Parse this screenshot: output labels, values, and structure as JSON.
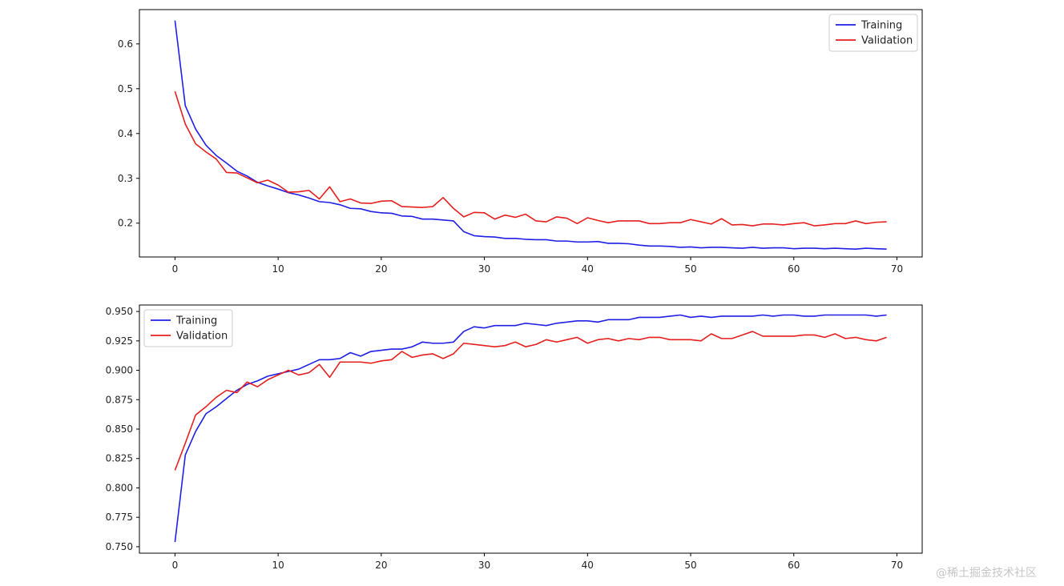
{
  "chart_data": [
    {
      "type": "line",
      "title": "",
      "xlabel": "",
      "ylabel": "",
      "xlim": [
        -3.45,
        72.45
      ],
      "ylim": [
        0.1245,
        0.6765
      ],
      "xticks": [
        0,
        10,
        20,
        30,
        40,
        50,
        60,
        70
      ],
      "xtick_labels": [
        "0",
        "10",
        "20",
        "30",
        "40",
        "50",
        "60",
        "70"
      ],
      "yticks": [
        0.2,
        0.3,
        0.4,
        0.5,
        0.6
      ],
      "ytick_labels": [
        "0.2",
        "0.3",
        "0.4",
        "0.5",
        "0.6"
      ],
      "grid": false,
      "legend_position": "top-right",
      "series": [
        {
          "name": "Training",
          "color": "#1f1fe6",
          "x": [
            0,
            1,
            2,
            3,
            4,
            5,
            6,
            7,
            8,
            9,
            10,
            11,
            12,
            13,
            14,
            15,
            16,
            17,
            18,
            19,
            20,
            21,
            22,
            23,
            24,
            25,
            26,
            27,
            28,
            29,
            30,
            31,
            32,
            33,
            34,
            35,
            36,
            37,
            38,
            39,
            40,
            41,
            42,
            43,
            44,
            45,
            46,
            47,
            48,
            49,
            50,
            51,
            52,
            53,
            54,
            55,
            56,
            57,
            58,
            59,
            60,
            61,
            62,
            63,
            64,
            65,
            66,
            67,
            68,
            69
          ],
          "values": [
            0.652,
            0.462,
            0.41,
            0.374,
            0.351,
            0.334,
            0.316,
            0.305,
            0.291,
            0.283,
            0.276,
            0.268,
            0.263,
            0.256,
            0.248,
            0.246,
            0.241,
            0.233,
            0.232,
            0.226,
            0.223,
            0.222,
            0.216,
            0.215,
            0.209,
            0.209,
            0.207,
            0.205,
            0.181,
            0.172,
            0.17,
            0.169,
            0.166,
            0.166,
            0.164,
            0.163,
            0.163,
            0.16,
            0.16,
            0.158,
            0.158,
            0.159,
            0.155,
            0.155,
            0.154,
            0.151,
            0.149,
            0.149,
            0.148,
            0.146,
            0.147,
            0.145,
            0.146,
            0.146,
            0.145,
            0.144,
            0.146,
            0.144,
            0.145,
            0.145,
            0.143,
            0.144,
            0.144,
            0.143,
            0.144,
            0.143,
            0.142,
            0.144,
            0.143,
            0.142
          ]
        },
        {
          "name": "Validation",
          "color": "#e61f1f",
          "x": [
            0,
            1,
            2,
            3,
            4,
            5,
            6,
            7,
            8,
            9,
            10,
            11,
            12,
            13,
            14,
            15,
            16,
            17,
            18,
            19,
            20,
            21,
            22,
            23,
            24,
            25,
            26,
            27,
            28,
            29,
            30,
            31,
            32,
            33,
            34,
            35,
            36,
            37,
            38,
            39,
            40,
            41,
            42,
            43,
            44,
            45,
            46,
            47,
            48,
            49,
            50,
            51,
            52,
            53,
            54,
            55,
            56,
            57,
            58,
            59,
            60,
            61,
            62,
            63,
            64,
            65,
            66,
            67,
            68,
            69
          ],
          "values": [
            0.494,
            0.421,
            0.377,
            0.359,
            0.343,
            0.313,
            0.312,
            0.301,
            0.29,
            0.296,
            0.285,
            0.269,
            0.27,
            0.273,
            0.254,
            0.281,
            0.248,
            0.254,
            0.245,
            0.244,
            0.249,
            0.25,
            0.237,
            0.236,
            0.235,
            0.237,
            0.257,
            0.233,
            0.214,
            0.224,
            0.223,
            0.209,
            0.218,
            0.213,
            0.22,
            0.205,
            0.203,
            0.214,
            0.211,
            0.199,
            0.212,
            0.206,
            0.201,
            0.205,
            0.205,
            0.205,
            0.199,
            0.199,
            0.201,
            0.201,
            0.208,
            0.203,
            0.198,
            0.21,
            0.196,
            0.197,
            0.194,
            0.198,
            0.198,
            0.196,
            0.199,
            0.201,
            0.194,
            0.196,
            0.199,
            0.199,
            0.205,
            0.199,
            0.202,
            0.203
          ]
        }
      ]
    },
    {
      "type": "line",
      "title": "",
      "xlabel": "",
      "ylabel": "",
      "xlim": [
        -3.45,
        72.45
      ],
      "ylim": [
        0.7445,
        0.9555
      ],
      "xticks": [
        0,
        10,
        20,
        30,
        40,
        50,
        60,
        70
      ],
      "xtick_labels": [
        "0",
        "10",
        "20",
        "30",
        "40",
        "50",
        "60",
        "70"
      ],
      "yticks": [
        0.75,
        0.775,
        0.8,
        0.825,
        0.85,
        0.875,
        0.9,
        0.925,
        0.95
      ],
      "ytick_labels": [
        "0.750",
        "0.775",
        "0.800",
        "0.825",
        "0.850",
        "0.875",
        "0.900",
        "0.925",
        "0.950"
      ],
      "grid": false,
      "legend_position": "top-left",
      "series": [
        {
          "name": "Training",
          "color": "#1f1fe6",
          "x": [
            0,
            1,
            2,
            3,
            4,
            5,
            6,
            7,
            8,
            9,
            10,
            11,
            12,
            13,
            14,
            15,
            16,
            17,
            18,
            19,
            20,
            21,
            22,
            23,
            24,
            25,
            26,
            27,
            28,
            29,
            30,
            31,
            32,
            33,
            34,
            35,
            36,
            37,
            38,
            39,
            40,
            41,
            42,
            43,
            44,
            45,
            46,
            47,
            48,
            49,
            50,
            51,
            52,
            53,
            54,
            55,
            56,
            57,
            58,
            59,
            60,
            61,
            62,
            63,
            64,
            65,
            66,
            67,
            68,
            69
          ],
          "values": [
            0.754,
            0.828,
            0.848,
            0.863,
            0.869,
            0.876,
            0.883,
            0.888,
            0.891,
            0.895,
            0.897,
            0.899,
            0.901,
            0.905,
            0.909,
            0.909,
            0.91,
            0.915,
            0.912,
            0.916,
            0.917,
            0.918,
            0.918,
            0.92,
            0.924,
            0.923,
            0.923,
            0.924,
            0.933,
            0.937,
            0.936,
            0.938,
            0.938,
            0.938,
            0.94,
            0.939,
            0.938,
            0.94,
            0.941,
            0.942,
            0.942,
            0.941,
            0.943,
            0.943,
            0.943,
            0.945,
            0.945,
            0.945,
            0.946,
            0.947,
            0.945,
            0.946,
            0.945,
            0.946,
            0.946,
            0.946,
            0.946,
            0.947,
            0.946,
            0.947,
            0.947,
            0.946,
            0.946,
            0.947,
            0.947,
            0.947,
            0.947,
            0.947,
            0.946,
            0.947
          ]
        },
        {
          "name": "Validation",
          "color": "#e61f1f",
          "x": [
            0,
            1,
            2,
            3,
            4,
            5,
            6,
            7,
            8,
            9,
            10,
            11,
            12,
            13,
            14,
            15,
            16,
            17,
            18,
            19,
            20,
            21,
            22,
            23,
            24,
            25,
            26,
            27,
            28,
            29,
            30,
            31,
            32,
            33,
            34,
            35,
            36,
            37,
            38,
            39,
            40,
            41,
            42,
            43,
            44,
            45,
            46,
            47,
            48,
            49,
            50,
            51,
            52,
            53,
            54,
            55,
            56,
            57,
            58,
            59,
            60,
            61,
            62,
            63,
            64,
            65,
            66,
            67,
            68,
            69
          ],
          "values": [
            0.815,
            0.838,
            0.862,
            0.869,
            0.877,
            0.883,
            0.881,
            0.89,
            0.886,
            0.892,
            0.896,
            0.9,
            0.896,
            0.898,
            0.905,
            0.894,
            0.907,
            0.907,
            0.907,
            0.906,
            0.908,
            0.909,
            0.916,
            0.911,
            0.913,
            0.914,
            0.91,
            0.914,
            0.923,
            0.922,
            0.921,
            0.92,
            0.921,
            0.924,
            0.92,
            0.922,
            0.926,
            0.924,
            0.926,
            0.928,
            0.923,
            0.926,
            0.927,
            0.925,
            0.927,
            0.926,
            0.928,
            0.928,
            0.926,
            0.926,
            0.926,
            0.925,
            0.931,
            0.927,
            0.927,
            0.93,
            0.933,
            0.929,
            0.929,
            0.929,
            0.929,
            0.93,
            0.93,
            0.928,
            0.931,
            0.927,
            0.928,
            0.926,
            0.925,
            0.928
          ]
        }
      ]
    }
  ],
  "watermark": "@稀土掘金技术社区"
}
